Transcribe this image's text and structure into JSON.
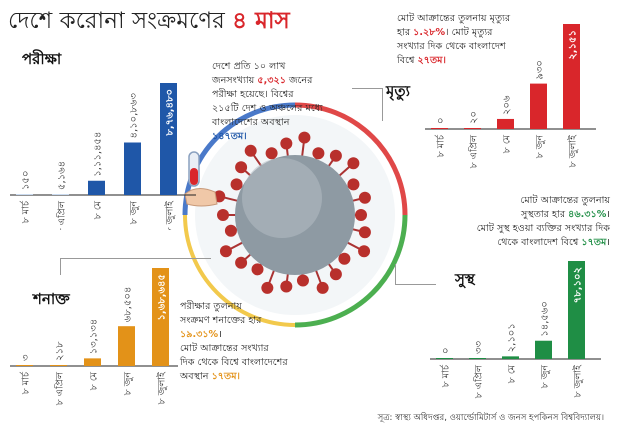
{
  "title": {
    "text": "দেশে করোনা সংক্রমণের",
    "highlight": "৪ মাস"
  },
  "source": "সূত্র: স্বাস্থ্য অধিদপ্তর, ওয়ার্ল্ডোমিটার্স ও জনস হপকিনস বিশ্ববিদ্যালয়।",
  "colors": {
    "accent": "#d9262b",
    "tests": "#1f57a8",
    "deaths": "#d9262b",
    "cases": "#e39218",
    "recovered": "#1f8e45",
    "pale": "#c9daef"
  },
  "notes": {
    "tests": [
      "দেশে প্রতি ১০ লাখ",
      "জনসংখ্যায় ",
      "৫,৩২১",
      " জনের",
      "পরীক্ষা হয়েছে। বিশ্বের",
      "২১৫টি দেশ ও অঞ্চলের মধ্যে",
      "বাংলাদেশের অবস্থান",
      "১৪৭তম।"
    ],
    "deaths": [
      "মোট আক্রান্তের তুলনায় মৃত্যুর",
      "হার ",
      "১.২৮%",
      "। মোট মৃত্যুর",
      "সংখ্যার দিক থেকে বাংলাদেশ",
      "বিশ্বে ",
      "২৭তম।"
    ],
    "recovered": [
      "মোট আক্রান্তের তুলনায়",
      "সুস্থতার হার ",
      "৪৬.৩১%",
      "।",
      "মোট সুস্থ হওয়া ব্যক্তির সংখ্যার দিক",
      "থেকে বাংলাদেশ বিশ্বে ",
      "১৭তম",
      "।"
    ],
    "cases": [
      "পরীক্ষার তুলনায়",
      "সংক্রমণ শনাক্তের হার",
      "১৯.৩১%",
      "।",
      "মোট আক্রান্তের সংখ্যার",
      "দিক থেকে বিশ্বে বাংলাদেশের",
      "অবস্থান ",
      "১৭তম।"
    ]
  },
  "chart_data": [
    {
      "type": "bar",
      "title": "পরীক্ষা",
      "categories": [
        "৮ মার্চ",
        "৮ এপ্রিল",
        "৮ মে",
        "৮ জুন",
        "৮ জুলাই"
      ],
      "labels": [
        "১৫০",
        "৫,১৬৪",
        "১,১১,৪৫৪",
        "৪,১০,৮৬৩",
        "৮,৭৬,৪৮০"
      ],
      "values": [
        150,
        5164,
        111454,
        410863,
        876480
      ],
      "ylim": [
        0,
        876480
      ]
    },
    {
      "type": "bar",
      "title": "মৃত্যু",
      "categories": [
        "৮ মার্চ",
        "৮ এপ্রিল",
        "৮ মে",
        "৮ জুন",
        "৮ জুলাই"
      ],
      "labels": [
        "০",
        "২০",
        "২০৬",
        "৯৩০",
        "২,১৫১"
      ],
      "values": [
        0,
        20,
        206,
        930,
        2151
      ],
      "ylim": [
        0,
        2151
      ]
    },
    {
      "type": "bar",
      "title": "শনাক্ত",
      "categories": [
        "৮ মার্চ",
        "৮ এপ্রিল",
        "৮ মে",
        "৮ জুন",
        "৮ জুলাই"
      ],
      "labels": [
        "৩",
        "২১৮",
        "১৩,১৩৪",
        "৬৮,৫০৪",
        "১,৬৮,৬৪৫"
      ],
      "values": [
        3,
        218,
        13134,
        68504,
        168645
      ],
      "ylim": [
        0,
        168645
      ]
    },
    {
      "type": "bar",
      "title": "সুস্থ",
      "categories": [
        "৮ মার্চ",
        "৮ এপ্রিল",
        "৮ মে",
        "৮ জুন",
        "৮ জুলাই"
      ],
      "labels": [
        "০",
        "৩৩",
        "২,১০১",
        "১৪,৫৬০",
        "৭৮,১০২"
      ],
      "values": [
        0,
        33,
        2101,
        14560,
        78102
      ],
      "ylim": [
        0,
        78102
      ]
    }
  ]
}
